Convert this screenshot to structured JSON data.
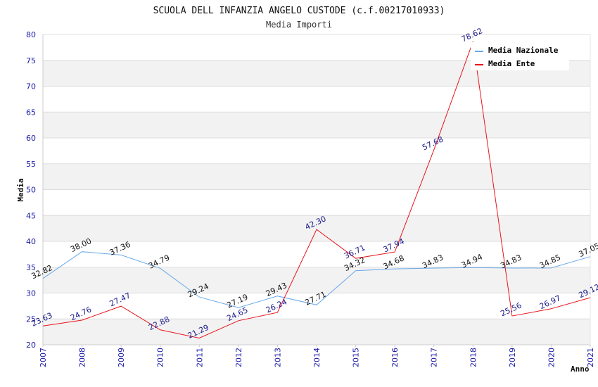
{
  "chart_data": {
    "type": "line",
    "title": "SCUOLA DELL INFANZIA ANGELO CUSTODE (c.f.00217010933)",
    "subtitle": "Media Importi",
    "xlabel": "Anno",
    "ylabel": "Media",
    "ylim": [
      20,
      80
    ],
    "yticks": [
      "20",
      "25",
      "30",
      "35",
      "40",
      "45",
      "50",
      "55",
      "60",
      "65",
      "70",
      "75",
      "80"
    ],
    "categories": [
      "2007",
      "2008",
      "2009",
      "2010",
      "2011",
      "2012",
      "2013",
      "2014",
      "2015",
      "2016",
      "2017",
      "2018",
      "2019",
      "2020",
      "2021"
    ],
    "grid": "horizontal alternating bands",
    "legend_position": "top-right",
    "series": [
      {
        "name": "Media Nazionale",
        "color": "#6aa8e8",
        "label_color": "#111111",
        "values": [
          32.82,
          38.0,
          37.36,
          34.79,
          29.24,
          27.19,
          29.43,
          27.71,
          34.32,
          34.68,
          34.83,
          34.94,
          34.83,
          34.85,
          37.05
        ],
        "labels": [
          "32.82",
          "38.00",
          "37.36",
          "34.79",
          "29.24",
          "27.19",
          "29.43",
          "27.71",
          "34.32",
          "34.68",
          "34.83",
          "34.94",
          "34.83",
          "34.85",
          "37.05"
        ]
      },
      {
        "name": "Media Ente",
        "color": "#e8141c",
        "label_color": "#1a1a8c",
        "values": [
          23.63,
          24.76,
          27.47,
          22.88,
          21.29,
          24.65,
          26.24,
          42.3,
          36.71,
          37.94,
          57.68,
          78.62,
          25.56,
          26.97,
          29.12
        ],
        "labels": [
          "23.63",
          "24.76",
          "27.47",
          "22.88",
          "21.29",
          "24.65",
          "26.24",
          "42.30",
          "36.71",
          "37.94",
          "57.68",
          "78.62",
          "25.56",
          "26.97",
          "29.12"
        ]
      }
    ]
  }
}
